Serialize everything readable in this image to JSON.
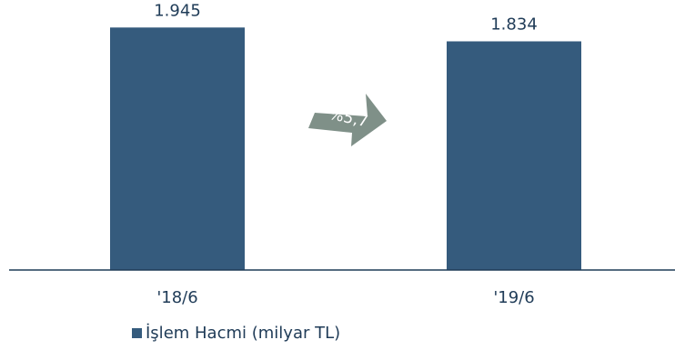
{
  "chart_data": {
    "type": "bar",
    "categories": [
      "'18/6",
      "'19/6"
    ],
    "series": [
      {
        "name": "İşlem Hacmi (milyar TL)",
        "values": [
          1945,
          1834
        ],
        "labels": [
          "1.945",
          "1.834"
        ]
      }
    ],
    "ylim": [
      0,
      2100
    ],
    "grid": false,
    "legend": "bottom-left",
    "annotations": [
      {
        "type": "arrow",
        "text": "%5,7",
        "meaning": "change from '18/6 to '19/6"
      }
    ],
    "colors": {
      "bar": "#355b7d",
      "arrow": "#7f9088",
      "axis": "#1f3b57",
      "text": "#1f3b57"
    }
  }
}
